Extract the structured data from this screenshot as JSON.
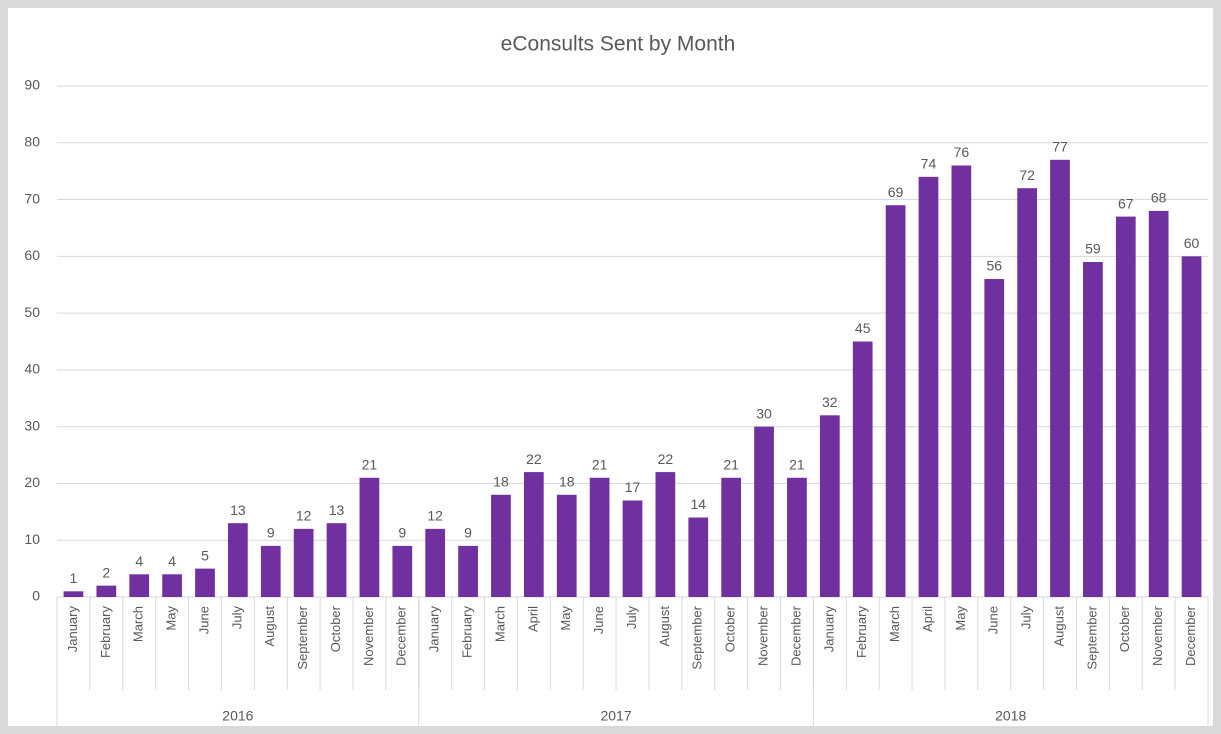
{
  "chart_data": {
    "type": "bar",
    "title": "eConsults Sent by Month",
    "color": "#7030a0",
    "ylim": [
      0,
      90
    ],
    "yticks": [
      0,
      10,
      20,
      30,
      40,
      50,
      60,
      70,
      80,
      90
    ],
    "grid": true,
    "groups": [
      {
        "name": "2016",
        "categories": [
          "January",
          "February",
          "March",
          "May",
          "June",
          "July",
          "August",
          "September",
          "October",
          "November",
          "December"
        ],
        "values": [
          1,
          2,
          4,
          4,
          5,
          13,
          9,
          12,
          13,
          21,
          9
        ]
      },
      {
        "name": "2017",
        "categories": [
          "January",
          "February",
          "March",
          "April",
          "May",
          "June",
          "July",
          "August",
          "September",
          "October",
          "November",
          "December"
        ],
        "values": [
          12,
          9,
          18,
          22,
          18,
          21,
          17,
          22,
          14,
          21,
          30,
          21
        ]
      },
      {
        "name": "2018",
        "categories": [
          "January",
          "February",
          "March",
          "April",
          "May",
          "June",
          "July",
          "August",
          "September",
          "October",
          "November",
          "December"
        ],
        "values": [
          32,
          45,
          69,
          74,
          76,
          56,
          72,
          77,
          59,
          67,
          68,
          60
        ]
      }
    ]
  }
}
